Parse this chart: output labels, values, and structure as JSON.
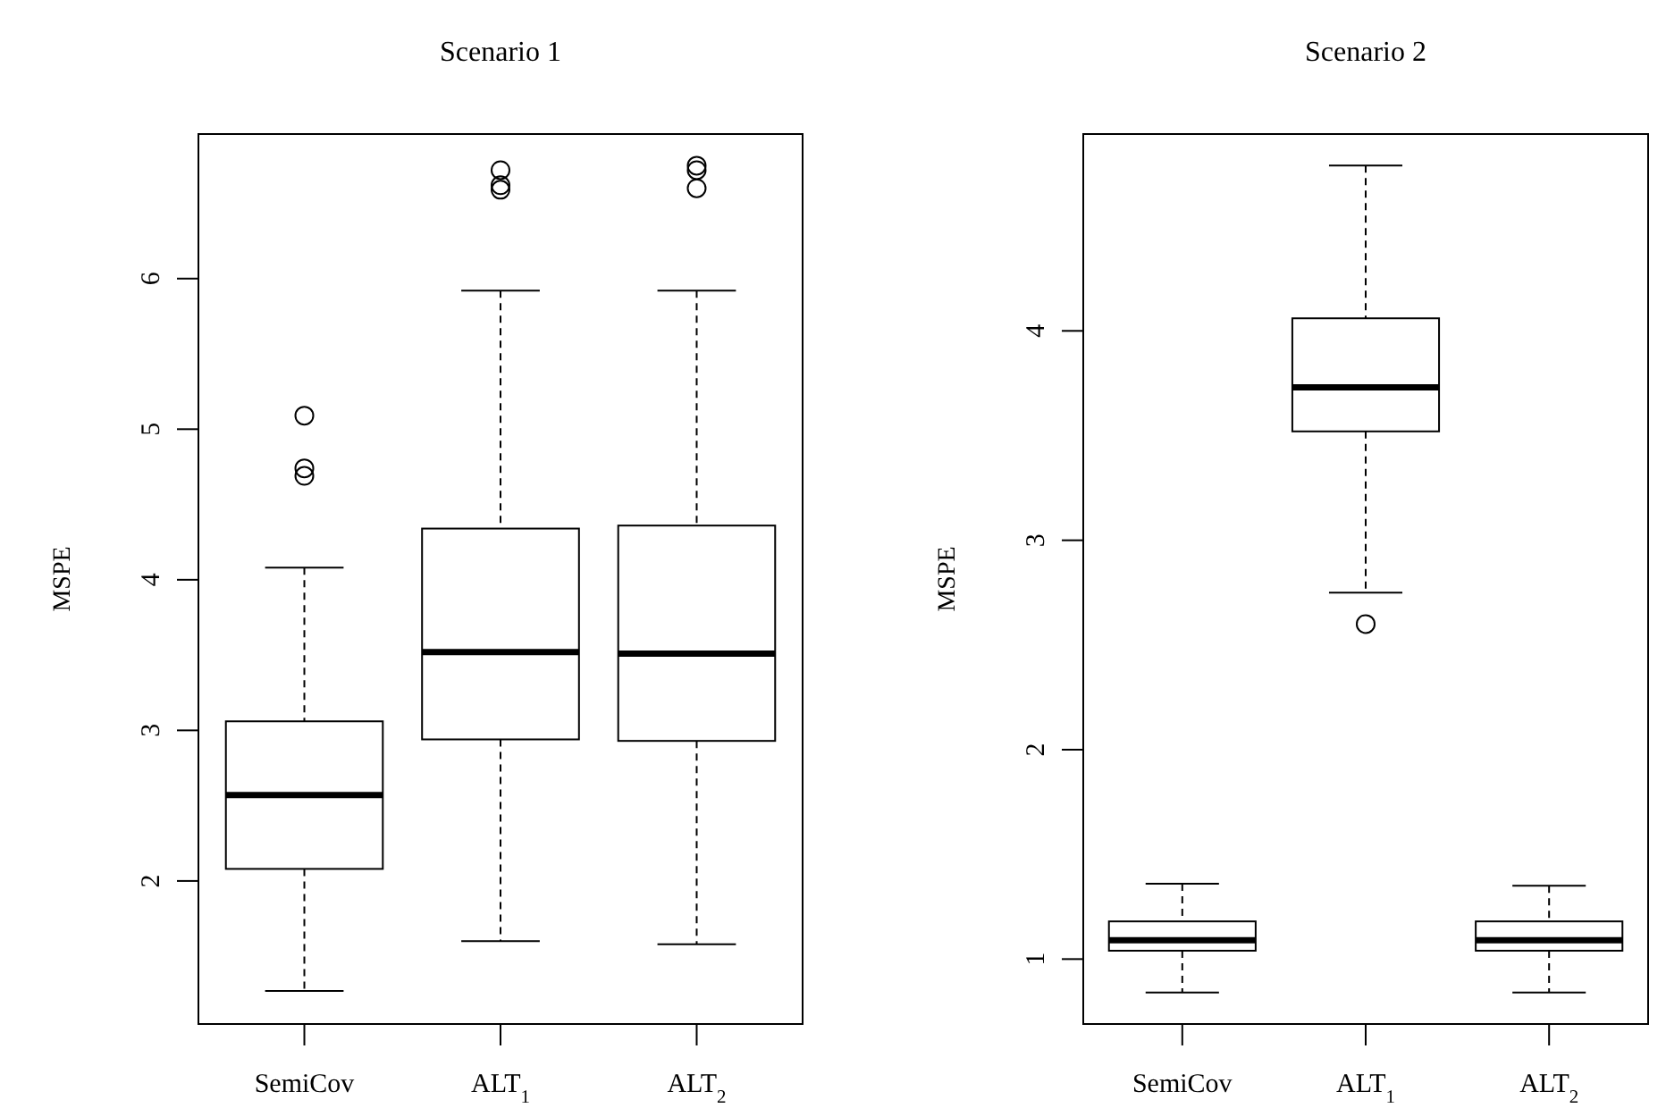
{
  "chart_data": [
    {
      "type": "box",
      "title": "Scenario 1",
      "ylabel": "MSPE",
      "categories": [
        "SemiCov",
        "ALT$_{1}$",
        "ALT$_{2}$"
      ],
      "ylim": [
        1.05,
        6.96
      ],
      "yticks": [
        2,
        3,
        4,
        5,
        6
      ],
      "boxes": [
        {
          "low": 1.27,
          "q1": 2.08,
          "median": 2.57,
          "q3": 3.06,
          "high": 4.08,
          "outliers": [
            5.09,
            4.74,
            4.69
          ]
        },
        {
          "low": 1.6,
          "q1": 2.94,
          "median": 3.52,
          "q3": 4.34,
          "high": 5.92,
          "outliers": [
            6.72,
            6.62,
            6.59
          ]
        },
        {
          "low": 1.58,
          "q1": 2.93,
          "median": 3.51,
          "q3": 4.36,
          "high": 5.92,
          "outliers": [
            6.75,
            6.72,
            6.6
          ]
        }
      ]
    },
    {
      "type": "box",
      "title": "Scenario 2",
      "ylabel": "MSPE",
      "categories": [
        "SemiCov",
        "ALT$_{1}$",
        "ALT$_{2}$"
      ],
      "ylim": [
        0.69,
        4.94
      ],
      "yticks": [
        1,
        2,
        3,
        4
      ],
      "boxes": [
        {
          "low": 0.84,
          "q1": 1.04,
          "median": 1.09,
          "q3": 1.18,
          "high": 1.36
        },
        {
          "low": 2.75,
          "q1": 3.52,
          "median": 3.73,
          "q3": 4.06,
          "high": 4.79,
          "outliers": [
            2.6
          ]
        },
        {
          "low": 0.84,
          "q1": 1.04,
          "median": 1.09,
          "q3": 1.18,
          "high": 1.35
        }
      ]
    }
  ]
}
